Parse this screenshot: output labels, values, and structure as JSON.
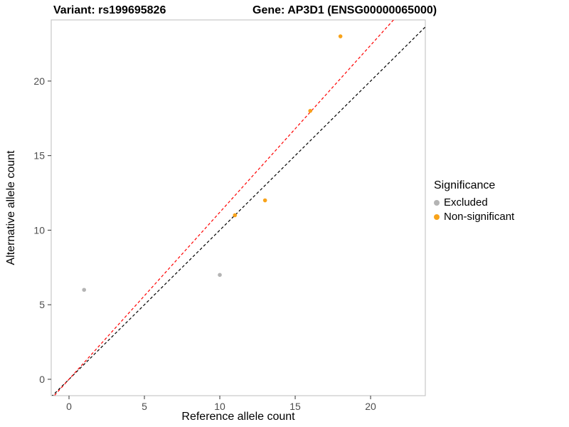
{
  "chart_data": {
    "type": "scatter",
    "title_left": "Variant: rs199695826",
    "title_right": "Gene: AP3D1 (ENSG00000065000)",
    "xlabel": "Reference allele count",
    "ylabel": "Alternative allele count",
    "xlim": [
      -1.18,
      23.63
    ],
    "ylim": [
      -1.1,
      24.1
    ],
    "xticks": [
      0,
      5,
      10,
      15,
      20
    ],
    "yticks": [
      0,
      5,
      10,
      15,
      20
    ],
    "grid": false,
    "panel_border_color": "#bdbdbd",
    "tick_color": "#333333",
    "tick_label_color": "#4d4d4d",
    "series": [
      {
        "name": "Excluded",
        "color": "#b4b4b4",
        "points": [
          [
            1,
            6
          ],
          [
            10,
            7
          ]
        ]
      },
      {
        "name": "Non-significant",
        "color": "#f8a31a",
        "points": [
          [
            11,
            11
          ],
          [
            13,
            12
          ],
          [
            16,
            18
          ],
          [
            18,
            23
          ]
        ]
      }
    ],
    "lines": [
      {
        "name": "identity-line",
        "color": "#000000",
        "slope": 1.0,
        "intercept": 0,
        "dash": "4 3"
      },
      {
        "name": "allelic-ratio-line",
        "color": "#ff0000",
        "slope": 1.12,
        "intercept": 0,
        "dash": "4 3"
      }
    ],
    "legend": {
      "title": "Significance",
      "position": "right",
      "items": [
        {
          "label": "Excluded",
          "color": "#b4b4b4"
        },
        {
          "label": "Non-significant",
          "color": "#f8a31a"
        }
      ]
    }
  }
}
